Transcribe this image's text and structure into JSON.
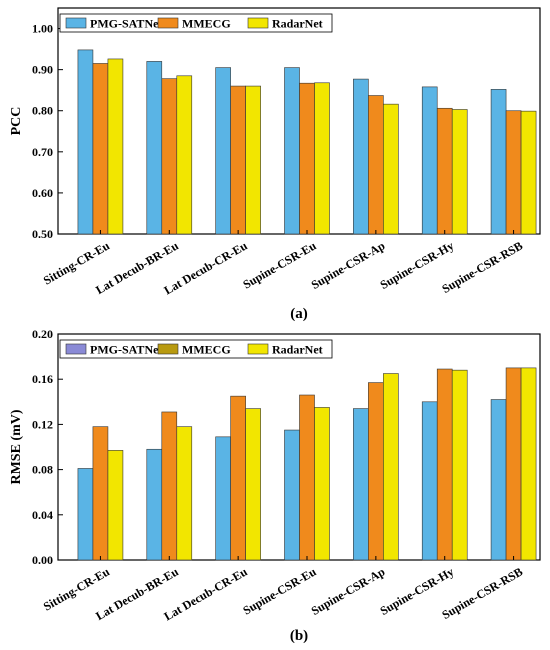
{
  "colors": {
    "PMG-SATNet": "#5ab4e5",
    "MMECG": "#f08a1c",
    "RadarNet": "#f2e600",
    "legend_patch_a": [
      "#5ab4e5",
      "#f08a1c",
      "#f2e600"
    ],
    "legend_patch_b": [
      "#8a8ad6",
      "#b89a10",
      "#f2e600"
    ]
  },
  "chart_data": [
    {
      "type": "bar",
      "panel_label": "(a)",
      "ylabel": "PCC",
      "xlabel": "",
      "ylim": [
        0.5,
        1.05
      ],
      "yticks": [
        0.5,
        0.6,
        0.7,
        0.8,
        0.9,
        1.0
      ],
      "ytick_labels": [
        "0.50",
        "0.60",
        "0.70",
        "0.80",
        "0.90",
        "1.00"
      ],
      "grid": false,
      "legend_position": "top-left",
      "categories": [
        "Sitting-CR-Eu",
        "Lat Decub-BR-Eu",
        "Lat Decub-CR-Eu",
        "Supine-CSR-Eu",
        "Supine-CSR-Ap",
        "Supine-CSR-Hy",
        "Supine-CSR-RSB"
      ],
      "series": [
        {
          "name": "PMG-SATNet",
          "values": [
            0.948,
            0.92,
            0.905,
            0.905,
            0.877,
            0.858,
            0.852
          ]
        },
        {
          "name": "MMECG",
          "values": [
            0.915,
            0.878,
            0.86,
            0.867,
            0.837,
            0.806,
            0.8
          ]
        },
        {
          "name": "RadarNet",
          "values": [
            0.926,
            0.885,
            0.86,
            0.868,
            0.816,
            0.803,
            0.799
          ]
        }
      ]
    },
    {
      "type": "bar",
      "panel_label": "(b)",
      "ylabel": "RMSE (mV)",
      "xlabel": "",
      "ylim": [
        0.0,
        0.2
      ],
      "yticks": [
        0.0,
        0.04,
        0.08,
        0.12,
        0.16,
        0.2
      ],
      "ytick_labels": [
        "0.00",
        "0.04",
        "0.08",
        "0.12",
        "0.16",
        "0.20"
      ],
      "grid": false,
      "legend_position": "top-left",
      "categories": [
        "Sitting-CR-Eu",
        "Lat Decub-BR-Eu",
        "Lat Decub-CR-Eu",
        "Supine-CSR-Eu",
        "Supine-CSR-Ap",
        "Supine-CSR-Hy",
        "Supine-CSR-RSB"
      ],
      "series": [
        {
          "name": "PMG-SATNet",
          "values": [
            0.081,
            0.098,
            0.109,
            0.115,
            0.134,
            0.14,
            0.142
          ]
        },
        {
          "name": "MMECG",
          "values": [
            0.118,
            0.131,
            0.145,
            0.146,
            0.157,
            0.169,
            0.17
          ]
        },
        {
          "name": "RadarNet",
          "values": [
            0.097,
            0.118,
            0.134,
            0.135,
            0.165,
            0.168,
            0.17
          ]
        }
      ]
    }
  ]
}
